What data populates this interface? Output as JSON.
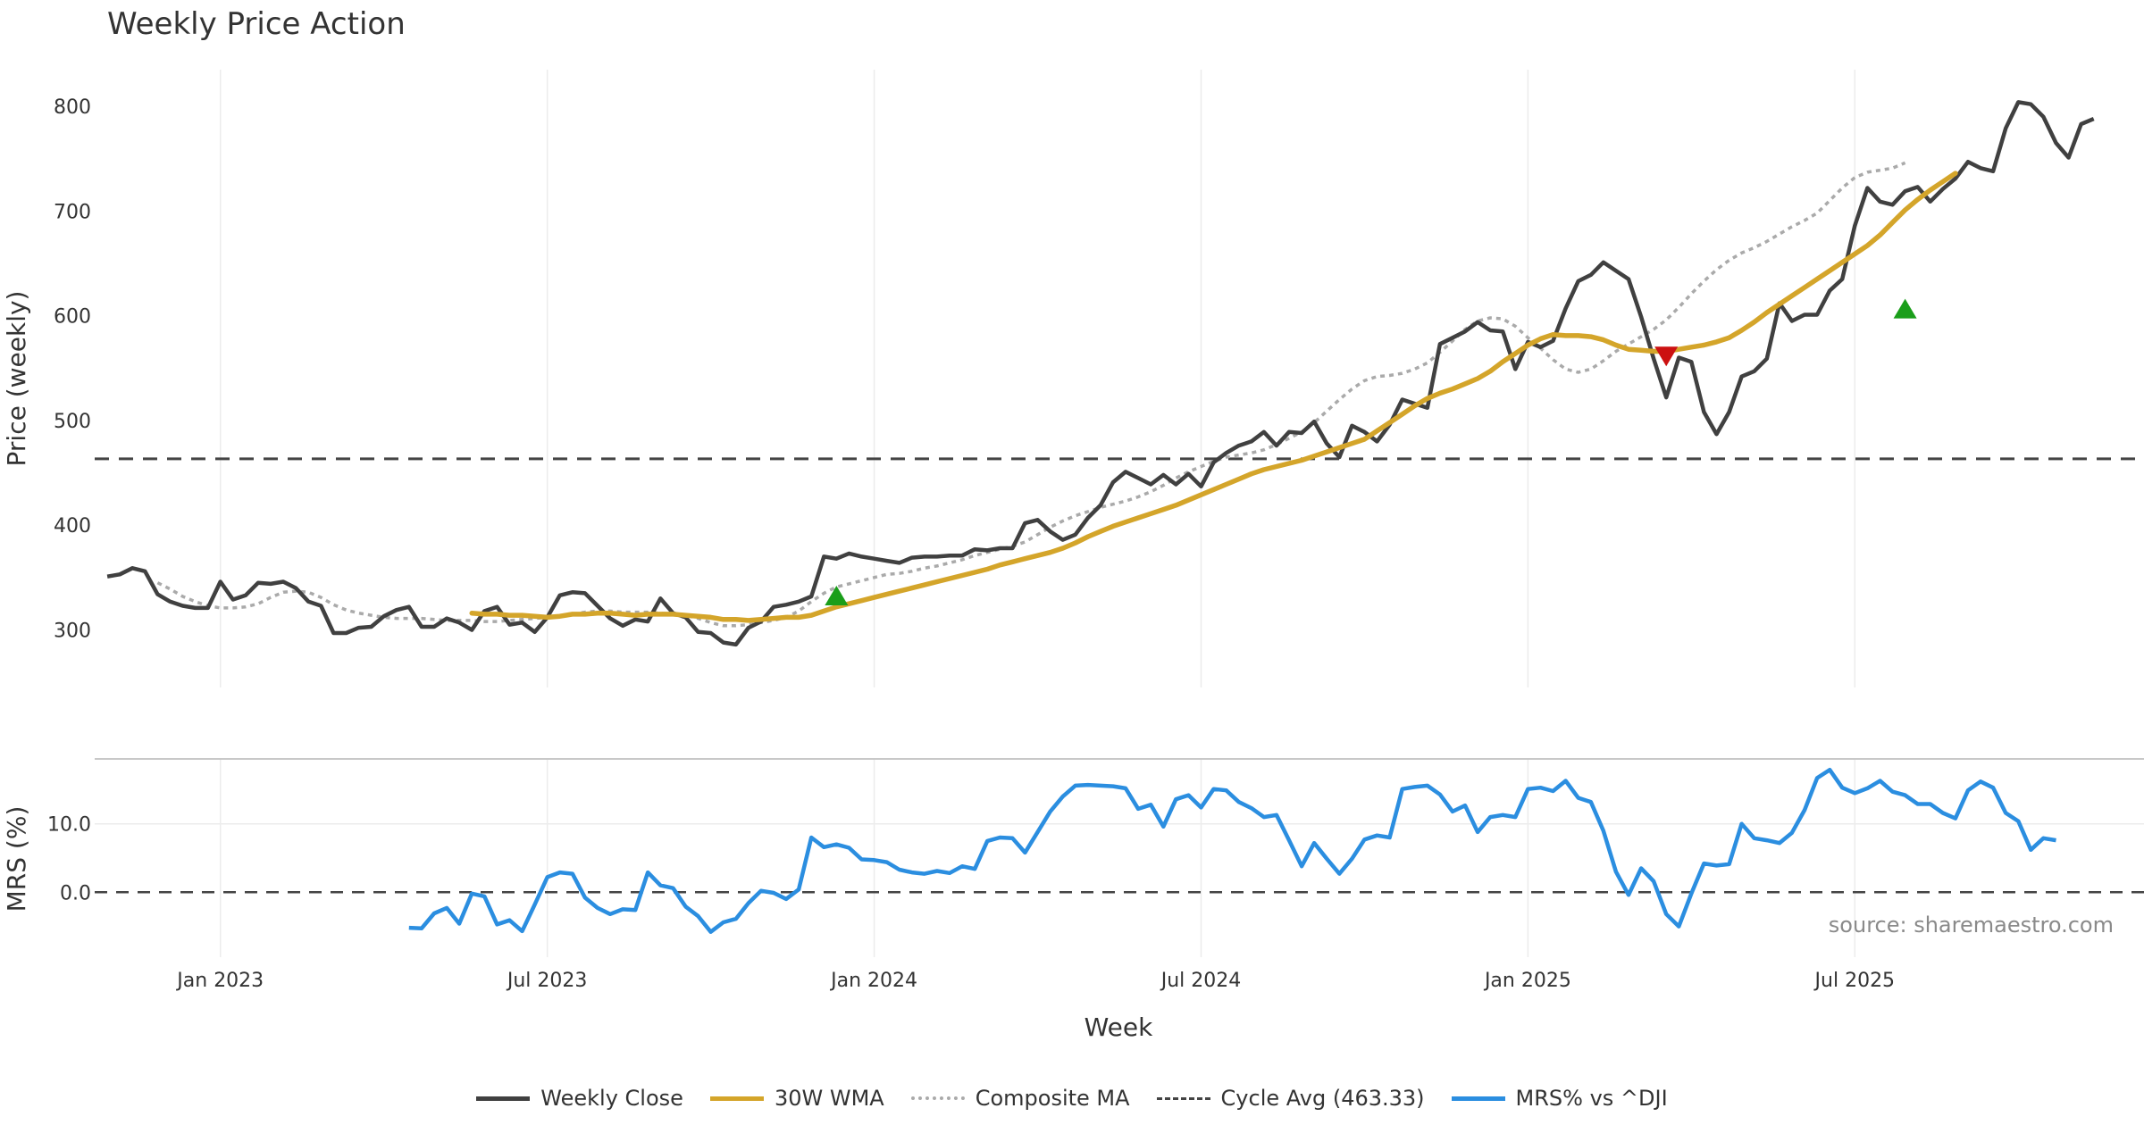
{
  "chart_data": {
    "type": "line",
    "title": "Weekly Price Action",
    "xlabel": "Week",
    "source": "source: sharemaestro.com",
    "x_ticks": [
      "Jan 2023",
      "Jul 2023",
      "Jan 2024",
      "Jul 2024",
      "Jan 2025",
      "Jul 2025"
    ],
    "x_range_weeks": [
      -10,
      153
    ],
    "x_tick_weeks": [
      0,
      26,
      52,
      78,
      104,
      130
    ],
    "price_panel": {
      "ylabel": "Price (weekly)",
      "ylim": [
        245,
        835
      ],
      "y_ticks": [
        300,
        400,
        500,
        600,
        700,
        800
      ],
      "cycle_avg": 463.33,
      "weekly_close": {
        "start_week": -9,
        "values": [
          351,
          353,
          359,
          356,
          334,
          327,
          323,
          321,
          321,
          346,
          329,
          333,
          345,
          344,
          346,
          340,
          327,
          323,
          297,
          297,
          302,
          303,
          313,
          319,
          322,
          303,
          303,
          311,
          307,
          300,
          318,
          322,
          305,
          307,
          298,
          312,
          333,
          336,
          335,
          323,
          311,
          304,
          310,
          308,
          330,
          316,
          312,
          298,
          297,
          288,
          286,
          302,
          308,
          322,
          324,
          327,
          332,
          370,
          368,
          373,
          370,
          368,
          366,
          364,
          369,
          370,
          370,
          371,
          371,
          377,
          376,
          378,
          378,
          402,
          405,
          394,
          386,
          391,
          407,
          419,
          441,
          451,
          445,
          439,
          448,
          439,
          449,
          437,
          460,
          469,
          476,
          480,
          489,
          476,
          489,
          488,
          499,
          478,
          465,
          495,
          489,
          480,
          496,
          520,
          516,
          512,
          573,
          579,
          585,
          594,
          586,
          585,
          549,
          575,
          570,
          576,
          607,
          633,
          639,
          651,
          643,
          635,
          599,
          559,
          522,
          560,
          556,
          508,
          487,
          508,
          542,
          547,
          559,
          612,
          595,
          601,
          601,
          624,
          635,
          686,
          722,
          709,
          706,
          719,
          723,
          709,
          721,
          731,
          747,
          741,
          738,
          779,
          804,
          802,
          790,
          765,
          751,
          783,
          788
        ]
      },
      "wma_30": {
        "start_week": 20,
        "values": [
          316,
          315,
          315,
          314,
          314,
          313,
          312,
          313,
          315,
          315,
          316,
          316,
          315,
          314,
          315,
          315,
          315,
          314,
          313,
          312,
          310,
          310,
          309,
          310,
          311,
          312,
          312,
          314,
          318,
          322,
          325,
          328,
          331,
          334,
          337,
          340,
          343,
          346,
          349,
          352,
          355,
          358,
          362,
          365,
          368,
          371,
          374,
          378,
          383,
          389,
          394,
          399,
          403,
          407,
          411,
          415,
          419,
          424,
          429,
          434,
          439,
          444,
          449,
          453,
          456,
          459,
          462,
          466,
          470,
          474,
          478,
          482,
          490,
          498,
          506,
          514,
          521,
          526,
          530,
          535,
          540,
          547,
          556,
          564,
          572,
          578,
          582,
          581,
          581,
          580,
          577,
          572,
          568,
          567,
          566,
          566,
          568,
          570,
          572,
          575,
          579,
          586,
          594,
          603,
          611,
          619,
          627,
          635,
          643,
          651,
          659,
          667,
          677,
          689,
          701,
          711,
          720,
          728,
          736
        ]
      },
      "composite_ma": {
        "start_week": -5,
        "values": [
          345,
          339,
          332,
          327,
          323,
          321,
          321,
          322,
          325,
          331,
          336,
          337,
          336,
          331,
          324,
          319,
          316,
          314,
          312,
          311,
          311,
          311,
          310,
          309,
          309,
          309,
          308,
          308,
          309,
          310,
          311,
          312,
          313,
          315,
          317,
          318,
          318,
          317,
          317,
          317,
          316,
          315,
          314,
          311,
          307,
          304,
          304,
          305,
          307,
          309,
          312,
          318,
          327,
          335,
          341,
          344,
          347,
          350,
          353,
          354,
          356,
          359,
          361,
          364,
          367,
          371,
          374,
          377,
          380,
          384,
          391,
          398,
          404,
          409,
          413,
          417,
          420,
          423,
          427,
          432,
          438,
          445,
          451,
          456,
          461,
          465,
          467,
          469,
          472,
          477,
          483,
          489,
          498,
          509,
          520,
          530,
          538,
          542,
          543,
          545,
          549,
          555,
          565,
          576,
          587,
          595,
          598,
          597,
          590,
          579,
          569,
          558,
          549,
          546,
          549,
          557,
          566,
          573,
          580,
          587,
          596,
          608,
          621,
          633,
          644,
          653,
          660,
          665,
          671,
          678,
          685,
          691,
          698,
          710,
          722,
          732,
          737,
          739,
          741,
          746
        ]
      },
      "buy_signals": [
        {
          "week": 49,
          "price": 332
        },
        {
          "week": 134,
          "price": 606
        }
      ],
      "sell_signals": [
        {
          "week": 115,
          "price": 562
        }
      ]
    },
    "mrs_panel": {
      "ylabel": "MRS (%)",
      "ylim": [
        -9.5,
        19.5
      ],
      "y_ticks": [
        0.0,
        10.0
      ],
      "y_tick_labels": [
        "0.0",
        "10.0"
      ],
      "zero_line": 0.0,
      "mrs_vs_dji": {
        "start_week": 15,
        "values": [
          -5.2,
          -5.3,
          -3.1,
          -2.3,
          -4.6,
          -0.2,
          -0.6,
          -4.7,
          -4.1,
          -5.7,
          -1.8,
          2.2,
          2.9,
          2.7,
          -0.8,
          -2.3,
          -3.2,
          -2.5,
          -2.6,
          2.9,
          1.0,
          0.6,
          -2.1,
          -3.5,
          -5.8,
          -4.4,
          -3.9,
          -1.6,
          0.2,
          -0.1,
          -1.0,
          0.4,
          8.0,
          6.6,
          7.0,
          6.5,
          4.8,
          4.7,
          4.4,
          3.3,
          2.9,
          2.7,
          3.1,
          2.8,
          3.8,
          3.4,
          7.5,
          8.0,
          7.9,
          5.8,
          8.8,
          11.8,
          14.0,
          15.6,
          15.7,
          15.6,
          15.5,
          15.2,
          12.2,
          12.8,
          9.6,
          13.6,
          14.2,
          12.4,
          15.1,
          14.9,
          13.2,
          12.3,
          11.0,
          11.3,
          7.6,
          3.8,
          7.2,
          4.9,
          2.7,
          4.9,
          7.7,
          8.3,
          8.0,
          15.1,
          15.4,
          15.6,
          14.3,
          11.8,
          12.7,
          8.8,
          11.0,
          11.3,
          11.0,
          15.1,
          15.3,
          14.8,
          16.3,
          13.8,
          13.2,
          9.0,
          3.0,
          -0.4,
          3.5,
          1.6,
          -3.2,
          -5.0,
          -0.2,
          4.2,
          3.9,
          4.1,
          10.0,
          7.9,
          7.6,
          7.2,
          8.7,
          12.0,
          16.7,
          17.9,
          15.3,
          14.5,
          15.2,
          16.3,
          14.7,
          14.2,
          12.9,
          12.9,
          11.6,
          10.8,
          14.9,
          16.2,
          15.3,
          11.6,
          10.4,
          6.2,
          7.9,
          7.6
        ]
      }
    },
    "legend": [
      {
        "label": "Weekly Close",
        "color": "#404040",
        "style": "solid"
      },
      {
        "label": "30W WMA",
        "color": "#d4a52a",
        "style": "solid"
      },
      {
        "label": "Composite MA",
        "color": "#aaaaaa",
        "style": "dotted"
      },
      {
        "label": "Cycle Avg (463.33)",
        "color": "#444444",
        "style": "dashed"
      },
      {
        "label": "MRS% vs ^DJI",
        "color": "#2b8ee0",
        "style": "solid"
      }
    ],
    "colors": {
      "close": "#404040",
      "wma": "#d4a52a",
      "composite": "#aaaaaa",
      "cycle": "#444444",
      "mrs": "#2b8ee0",
      "buy": "#1a9e1a",
      "sell": "#cc1111"
    }
  }
}
